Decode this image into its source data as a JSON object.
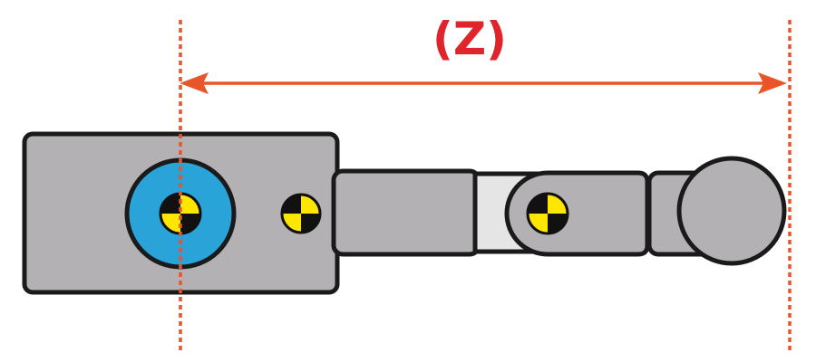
{
  "dimension": {
    "label": "(Z)",
    "label_color": "#e0242b",
    "arrow_color": "#e8552b",
    "guide_color": "#e8552b"
  },
  "colors": {
    "body_fill": "#b3b1b3",
    "outline": "#1a1a1a",
    "hub_ring": "#2aa3d8",
    "clevis_fill": "#e5e5e6",
    "marker_yellow": "#ffe600",
    "marker_black": "#111111"
  },
  "icons": {
    "target_marker": "crash-test-target-icon",
    "arrow": "double-headed-arrow-icon"
  }
}
